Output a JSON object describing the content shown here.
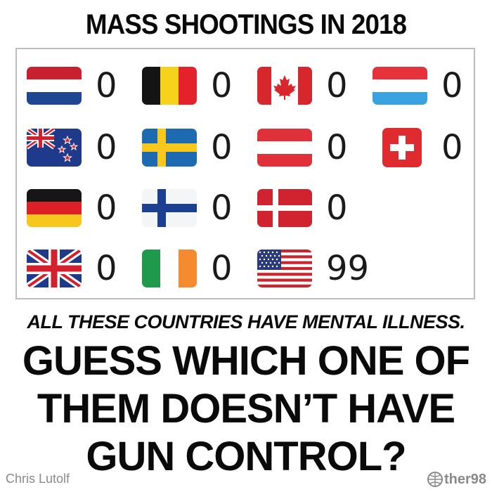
{
  "title": "MASS SHOOTINGS IN 2018",
  "countries": [
    {
      "flag": "netherlands-flag",
      "count": "0"
    },
    {
      "flag": "belgium-flag",
      "count": "0"
    },
    {
      "flag": "canada-flag",
      "count": "0"
    },
    {
      "flag": "luxembourg-flag",
      "count": "0"
    },
    {
      "flag": "new-zealand-flag",
      "count": "0"
    },
    {
      "flag": "sweden-flag",
      "count": "0"
    },
    {
      "flag": "austria-flag",
      "count": "0"
    },
    {
      "flag": "switzerland-flag",
      "count": "0"
    },
    {
      "flag": "germany-flag",
      "count": "0"
    },
    {
      "flag": "finland-flag",
      "count": "0"
    },
    {
      "flag": "denmark-flag",
      "count": "0"
    },
    {
      "flag": "united-kingdom-flag",
      "count": "0"
    },
    {
      "flag": "ireland-flag",
      "count": "0"
    },
    {
      "flag": "united-states-flag",
      "count": "99"
    }
  ],
  "tagline": "ALL THESE COUNTRIES HAVE MENTAL ILLNESS.",
  "question": {
    "line1": "GUESS WHICH ONE OF",
    "line2": "THEM DOESN’T HAVE",
    "line3": "GUN CONTROL?"
  },
  "credit": "Chris Lutolf",
  "brand": "ther98",
  "colors": {
    "text": "#0a0a0a",
    "panel_border": "#bdbdbd",
    "footer_text": "#8a8a8a"
  }
}
